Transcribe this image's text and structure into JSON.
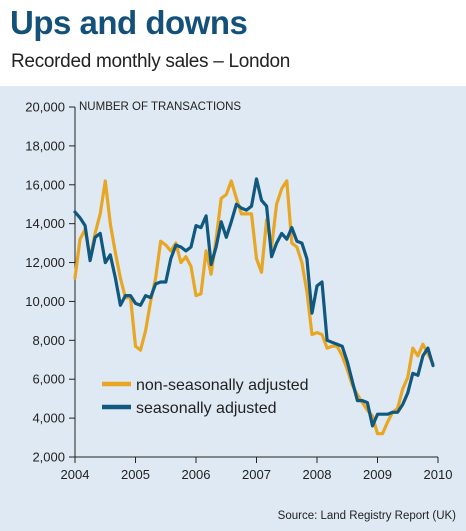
{
  "header": {
    "title": "Ups and downs",
    "subtitle": "Recorded monthly sales – London"
  },
  "footer": {
    "source": "Source: Land Registry Report (UK)"
  },
  "colors": {
    "non_seasonal": "#e7a623",
    "seasonal": "#10587f",
    "title": "#14517a",
    "panel_background": "#dfe9f3"
  },
  "chart_data": {
    "type": "line",
    "ylabel": "NUMBER OF TRANSACTIONS",
    "xlabel": "",
    "ylim": [
      2000,
      20000
    ],
    "xlim": [
      2004,
      2010
    ],
    "y_ticks": [
      "2,000",
      "4,000",
      "6,000",
      "8,000",
      "10,000",
      "12,000",
      "14,000",
      "16,000",
      "18,000",
      "20,000"
    ],
    "x_ticks": [
      "2004",
      "2005",
      "2006",
      "2007",
      "2008",
      "2009",
      "2010"
    ],
    "grid": false,
    "legend_position": "bottom-left",
    "series": [
      {
        "name": "non-seasonally adjusted",
        "color": "#e7a623",
        "points": [
          [
            2004.0,
            11200
          ],
          [
            2004.083,
            13200
          ],
          [
            2004.167,
            13700
          ],
          [
            2004.25,
            12200
          ],
          [
            2004.333,
            13500
          ],
          [
            2004.417,
            14500
          ],
          [
            2004.5,
            16200
          ],
          [
            2004.583,
            14000
          ],
          [
            2004.667,
            12500
          ],
          [
            2004.75,
            11200
          ],
          [
            2004.833,
            10200
          ],
          [
            2004.917,
            10200
          ],
          [
            2005.0,
            7700
          ],
          [
            2005.083,
            7500
          ],
          [
            2005.167,
            8500
          ],
          [
            2005.25,
            10000
          ],
          [
            2005.333,
            11200
          ],
          [
            2005.417,
            13100
          ],
          [
            2005.5,
            12900
          ],
          [
            2005.583,
            12600
          ],
          [
            2005.667,
            13000
          ],
          [
            2005.75,
            12000
          ],
          [
            2005.833,
            12300
          ],
          [
            2005.917,
            11800
          ],
          [
            2006.0,
            10300
          ],
          [
            2006.083,
            10400
          ],
          [
            2006.167,
            12600
          ],
          [
            2006.25,
            11400
          ],
          [
            2006.333,
            13200
          ],
          [
            2006.417,
            15300
          ],
          [
            2006.5,
            15500
          ],
          [
            2006.583,
            16200
          ],
          [
            2006.667,
            15300
          ],
          [
            2006.75,
            14500
          ],
          [
            2006.833,
            14500
          ],
          [
            2006.917,
            14500
          ],
          [
            2007.0,
            12200
          ],
          [
            2007.083,
            11500
          ],
          [
            2007.167,
            14200
          ],
          [
            2007.25,
            12800
          ],
          [
            2007.333,
            15000
          ],
          [
            2007.417,
            15800
          ],
          [
            2007.5,
            16200
          ],
          [
            2007.583,
            13000
          ],
          [
            2007.667,
            12800
          ],
          [
            2007.75,
            12000
          ],
          [
            2007.833,
            10500
          ],
          [
            2007.917,
            8300
          ],
          [
            2008.0,
            8400
          ],
          [
            2008.083,
            8300
          ],
          [
            2008.167,
            7600
          ],
          [
            2008.25,
            7700
          ],
          [
            2008.333,
            7700
          ],
          [
            2008.417,
            7200
          ],
          [
            2008.5,
            6500
          ],
          [
            2008.583,
            5700
          ],
          [
            2008.667,
            5200
          ],
          [
            2008.75,
            4800
          ],
          [
            2008.833,
            4400
          ],
          [
            2008.917,
            4100
          ],
          [
            2009.0,
            3200
          ],
          [
            2009.083,
            3200
          ],
          [
            2009.167,
            3800
          ],
          [
            2009.25,
            4300
          ],
          [
            2009.333,
            4500
          ],
          [
            2009.417,
            5500
          ],
          [
            2009.5,
            6100
          ],
          [
            2009.583,
            7600
          ],
          [
            2009.667,
            7200
          ],
          [
            2009.75,
            7800
          ],
          [
            2009.833,
            7300
          ],
          [
            2009.917,
            6800
          ]
        ]
      },
      {
        "name": "seasonally adjusted",
        "color": "#10587f",
        "points": [
          [
            2004.0,
            14600
          ],
          [
            2004.083,
            14300
          ],
          [
            2004.167,
            13900
          ],
          [
            2004.25,
            12100
          ],
          [
            2004.333,
            13300
          ],
          [
            2004.417,
            13500
          ],
          [
            2004.5,
            12000
          ],
          [
            2004.583,
            12400
          ],
          [
            2004.667,
            11200
          ],
          [
            2004.75,
            9800
          ],
          [
            2004.833,
            10300
          ],
          [
            2004.917,
            10300
          ],
          [
            2005.0,
            9900
          ],
          [
            2005.083,
            9800
          ],
          [
            2005.167,
            10300
          ],
          [
            2005.25,
            10200
          ],
          [
            2005.333,
            10900
          ],
          [
            2005.417,
            11000
          ],
          [
            2005.5,
            11000
          ],
          [
            2005.583,
            12200
          ],
          [
            2005.667,
            12900
          ],
          [
            2005.75,
            12800
          ],
          [
            2005.833,
            12600
          ],
          [
            2005.917,
            12800
          ],
          [
            2006.0,
            13900
          ],
          [
            2006.083,
            13800
          ],
          [
            2006.167,
            14400
          ],
          [
            2006.25,
            11900
          ],
          [
            2006.333,
            12800
          ],
          [
            2006.417,
            14100
          ],
          [
            2006.5,
            13300
          ],
          [
            2006.583,
            14100
          ],
          [
            2006.667,
            15000
          ],
          [
            2006.75,
            14800
          ],
          [
            2006.833,
            14700
          ],
          [
            2006.917,
            14900
          ],
          [
            2007.0,
            16300
          ],
          [
            2007.083,
            15200
          ],
          [
            2007.167,
            14900
          ],
          [
            2007.25,
            12300
          ],
          [
            2007.333,
            13000
          ],
          [
            2007.417,
            13500
          ],
          [
            2007.5,
            13200
          ],
          [
            2007.583,
            13800
          ],
          [
            2007.667,
            13100
          ],
          [
            2007.75,
            13000
          ],
          [
            2007.833,
            12200
          ],
          [
            2007.917,
            9400
          ],
          [
            2008.0,
            10800
          ],
          [
            2008.083,
            11000
          ],
          [
            2008.167,
            8000
          ],
          [
            2008.25,
            7900
          ],
          [
            2008.333,
            7800
          ],
          [
            2008.417,
            7700
          ],
          [
            2008.5,
            6900
          ],
          [
            2008.583,
            5900
          ],
          [
            2008.667,
            4900
          ],
          [
            2008.75,
            4900
          ],
          [
            2008.833,
            4800
          ],
          [
            2008.917,
            3600
          ],
          [
            2009.0,
            4200
          ],
          [
            2009.083,
            4200
          ],
          [
            2009.167,
            4200
          ],
          [
            2009.25,
            4300
          ],
          [
            2009.333,
            4300
          ],
          [
            2009.417,
            4700
          ],
          [
            2009.5,
            5300
          ],
          [
            2009.583,
            6300
          ],
          [
            2009.667,
            6200
          ],
          [
            2009.75,
            7200
          ],
          [
            2009.833,
            7600
          ],
          [
            2009.917,
            6700
          ]
        ]
      }
    ]
  }
}
